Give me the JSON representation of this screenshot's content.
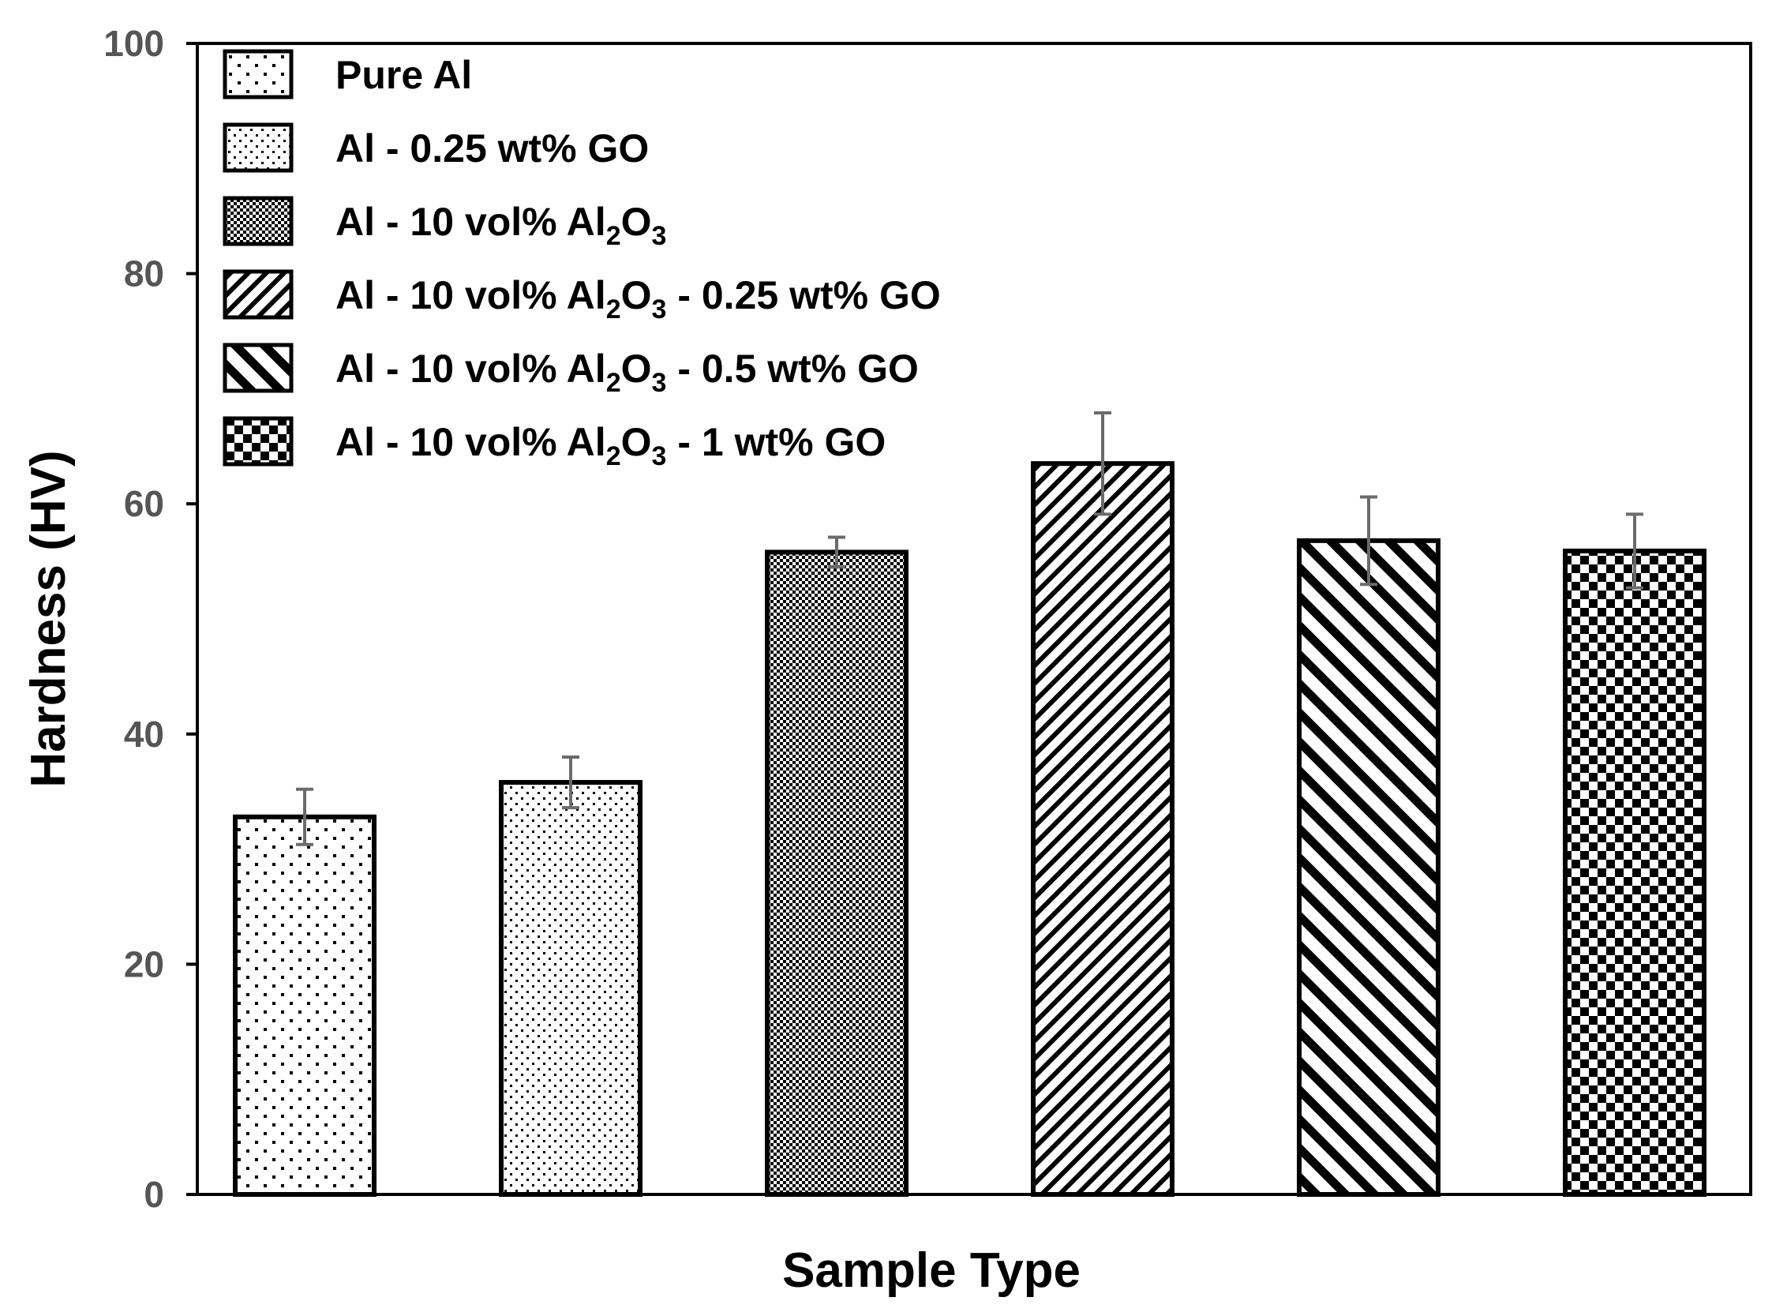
{
  "chart_data": {
    "type": "bar",
    "title": "",
    "xlabel": "Sample Type",
    "ylabel": "Hardness (HV)",
    "ylim": [
      0,
      100
    ],
    "yticks": [
      "0",
      "20",
      "40",
      "60",
      "80",
      "100"
    ],
    "grid": false,
    "legend_position": "top-left",
    "categories": [
      "Pure Al",
      "Al - 0.25 wt% GO",
      "Al - 10 vol% Al2O3",
      "Al - 10 vol% Al2O3 - 0.25 wt% GO",
      "Al - 10 vol% Al2O3 - 0.5 wt% GO",
      "Al - 10 vol% Al2O3 - 1 wt% GO"
    ],
    "values": [
      32.8,
      35.8,
      55.8,
      63.5,
      56.8,
      55.9
    ],
    "errors": [
      2.4,
      2.2,
      1.3,
      4.4,
      3.8,
      3.2
    ],
    "patterns": [
      "sparse-dots",
      "dots",
      "dense-dots",
      "up-diagonal",
      "down-diagonal",
      "checker"
    ],
    "legend": [
      {
        "label": "Pure Al",
        "pattern": "sparse-dots"
      },
      {
        "label": "Al - 0.25 wt% GO",
        "pattern": "dots"
      },
      {
        "label": "Al - 10 vol% Al",
        "sub": "2",
        "mid": "O",
        "sub2": "3",
        "tail": "",
        "pattern": "dense-dots"
      },
      {
        "label": "Al - 10 vol% Al",
        "sub": "2",
        "mid": "O",
        "sub2": "3",
        "tail": " - 0.25 wt% GO",
        "pattern": "up-diagonal"
      },
      {
        "label": "Al - 10 vol% Al",
        "sub": "2",
        "mid": "O",
        "sub2": "3",
        "tail": " - 0.5 wt% GO",
        "pattern": "down-diagonal"
      },
      {
        "label": "Al - 10 vol% Al",
        "sub": "2",
        "mid": "O",
        "sub2": "3",
        "tail": " - 1 wt% GO",
        "pattern": "checker"
      }
    ],
    "colors": {
      "bar_stroke": "#000000",
      "error_bar": "#6b6b6b",
      "tick_text": "#555555"
    }
  }
}
